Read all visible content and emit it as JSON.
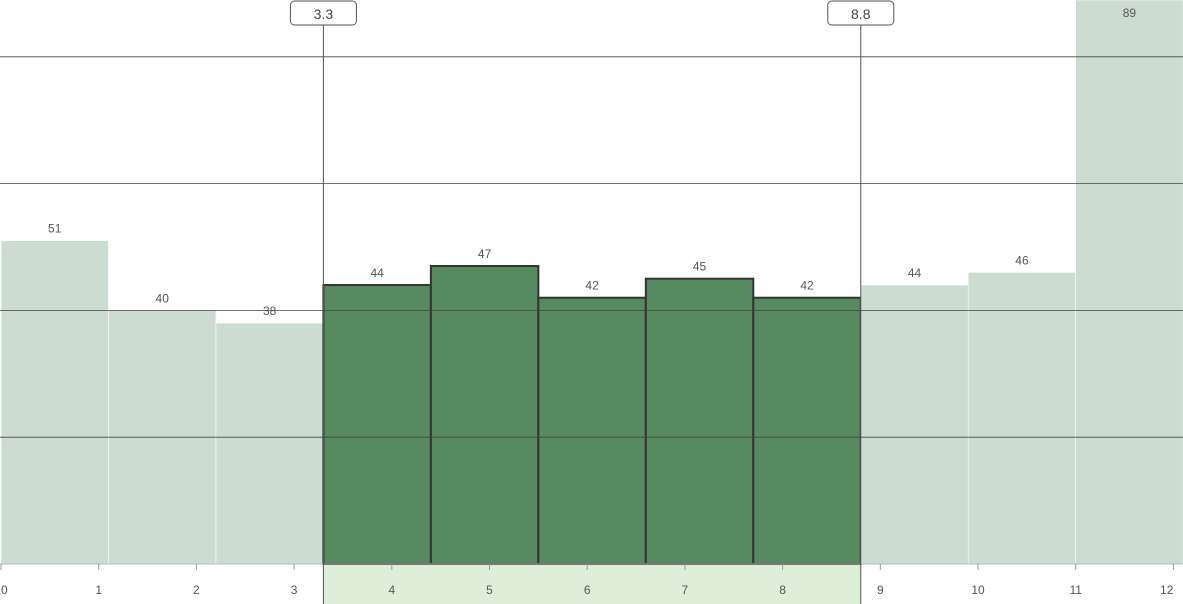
{
  "chart_data": {
    "type": "bar",
    "categories": [
      "0-1.1",
      "1.1-2.2",
      "2.2-3.3",
      "3.3-4.4",
      "4.4-5.5",
      "5.5-6.6",
      "6.6-7.7",
      "7.7-8.8",
      "8.8-9.9",
      "9.9-11",
      "11-12.1"
    ],
    "bin_edges": [
      0,
      1.1,
      2.2,
      3.3,
      4.4,
      5.5,
      6.6,
      7.7,
      8.8,
      9.9,
      11,
      12.1
    ],
    "values": [
      51,
      40,
      38,
      44,
      47,
      42,
      45,
      42,
      44,
      46,
      89
    ],
    "value_labels": [
      "51",
      "40",
      "38",
      "44",
      "47",
      "42",
      "45",
      "42",
      "44",
      "46",
      "89"
    ],
    "selection": {
      "start": 3.3,
      "end": 8.8,
      "start_label": "3.3",
      "end_label": "8.8"
    },
    "xlim": [
      0,
      12.1
    ],
    "ylim": [
      0,
      89
    ],
    "x_ticks": [
      0,
      1,
      2,
      3,
      4,
      5,
      6,
      7,
      8,
      9,
      10,
      11,
      12
    ],
    "x_tick_labels": [
      "0",
      "1",
      "2",
      "3",
      "4",
      "5",
      "6",
      "7",
      "8",
      "9",
      "10",
      "11",
      "12"
    ],
    "y_gridlines": [
      20,
      40,
      60,
      80
    ],
    "grid": true,
    "colors": {
      "selected_bar": "#578b5f",
      "selected_bar_stroke": "#333333",
      "unselected_bar": "#cddcd0",
      "selection_band": "#dfeed8",
      "gridline": "#444444",
      "cursor_line": "#555555"
    }
  }
}
